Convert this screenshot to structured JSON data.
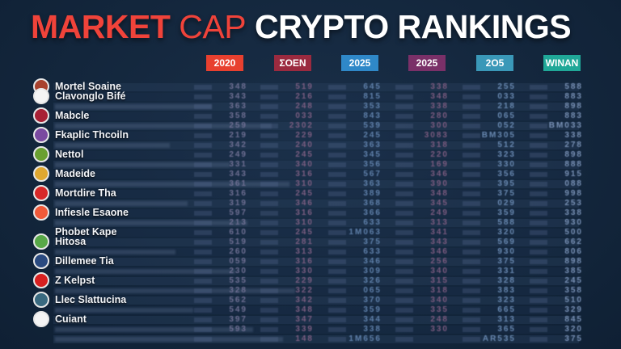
{
  "title": {
    "part1": "MARKET",
    "part2": "CAP",
    "part3": "CRYPTO RANKINGS"
  },
  "colors": {
    "title_red": "#f0433a",
    "background": "#13263c"
  },
  "columns": [
    {
      "label": "2020",
      "color": "#e8402f"
    },
    {
      "label": "ΣOEN",
      "color": "#9b2a3f"
    },
    {
      "label": "2025",
      "color": "#2f88c8"
    },
    {
      "label": "2025",
      "color": "#7a3068"
    },
    {
      "label": "2O5",
      "color": "#3a98b8"
    },
    {
      "label": "WINAN",
      "color": "#20a898"
    }
  ],
  "rows": [
    {
      "name": "Mortel Soaine",
      "logo": "#a8422e",
      "values": [
        "348",
        "519",
        "645",
        "338",
        "255",
        "588"
      ]
    },
    {
      "name": "Clavonglo Bifé",
      "logo": "#f4f4f4",
      "values": [
        "343",
        "216",
        "815",
        "348",
        "033",
        "883"
      ]
    },
    {
      "name": "",
      "values": [
        "363",
        "248",
        "353",
        "338",
        "218",
        "898"
      ]
    },
    {
      "name": "Mabcle",
      "logo": "#a82035",
      "values": [
        "358",
        "033",
        "843",
        "280",
        "065",
        "883"
      ]
    },
    {
      "name": "",
      "values": [
        "259",
        "2302",
        "539",
        "300",
        "052",
        "BM033"
      ]
    },
    {
      "name": "Fkaplic Thcoiln",
      "logo": "#7a4aa0",
      "values": [
        "219",
        "229",
        "245",
        "3083",
        "BM305",
        "338"
      ]
    },
    {
      "name": "",
      "values": [
        "342",
        "240",
        "363",
        "318",
        "512",
        "278"
      ]
    },
    {
      "name": "Nettol",
      "logo": "#6aa030",
      "values": [
        "249",
        "245",
        "345",
        "220",
        "323",
        "898"
      ]
    },
    {
      "name": "",
      "values": [
        "331",
        "340",
        "356",
        "169",
        "330",
        "888"
      ]
    },
    {
      "name": "Madeide",
      "logo": "#e0a830",
      "values": [
        "343",
        "316",
        "567",
        "346",
        "356",
        "915"
      ]
    },
    {
      "name": "",
      "values": [
        "361",
        "310",
        "363",
        "390",
        "395",
        "088"
      ]
    },
    {
      "name": "Mortdire Tha",
      "logo": "#d82828",
      "values": [
        "316",
        "245",
        "389",
        "348",
        "375",
        "998"
      ]
    },
    {
      "name": "",
      "values": [
        "319",
        "346",
        "368",
        "345",
        "029",
        "253"
      ]
    },
    {
      "name": "Infiesle Esaone",
      "logo": "#f05a3a",
      "values": [
        "597",
        "316",
        "366",
        "249",
        "359",
        "338"
      ]
    },
    {
      "name": "",
      "values": [
        "213",
        "310",
        "633",
        "313",
        "588",
        "930"
      ]
    },
    {
      "name": "Phobet Kape",
      "values": [
        "610",
        "245",
        "1M063",
        "341",
        "320",
        "500"
      ]
    },
    {
      "name": "Hitosa",
      "logo": "#58a848",
      "values": [
        "519",
        "281",
        "375",
        "343",
        "569",
        "662"
      ]
    },
    {
      "name": "",
      "values": [
        "260",
        "313",
        "633",
        "346",
        "930",
        "806"
      ]
    },
    {
      "name": "Dillemee Tia",
      "logo": "#2a4a80",
      "values": [
        "059",
        "316",
        "346",
        "256",
        "375",
        "898"
      ]
    },
    {
      "name": "",
      "values": [
        "230",
        "330",
        "309",
        "340",
        "331",
        "385"
      ]
    },
    {
      "name": "Z Kelpst",
      "logo": "#d82020",
      "values": [
        "535",
        "229",
        "326",
        "315",
        "328",
        "245"
      ]
    },
    {
      "name": "",
      "values": [
        "328",
        "322",
        "065",
        "318",
        "383",
        "358"
      ]
    },
    {
      "name": "Llec Slattucina",
      "logo": "#3a6a80",
      "values": [
        "562",
        "342",
        "370",
        "340",
        "323",
        "510"
      ]
    },
    {
      "name": "",
      "values": [
        "549",
        "348",
        "359",
        "335",
        "665",
        "329"
      ]
    },
    {
      "name": "Cuiant",
      "logo": "#f4f4f4",
      "values": [
        "397",
        "347",
        "344",
        "248",
        "313",
        "845"
      ]
    },
    {
      "name": "",
      "values": [
        "593",
        "339",
        "338",
        "330",
        "365",
        "320"
      ]
    },
    {
      "name": "",
      "values": [
        "",
        "148",
        "1M656",
        "",
        "AR535",
        "375"
      ]
    }
  ]
}
